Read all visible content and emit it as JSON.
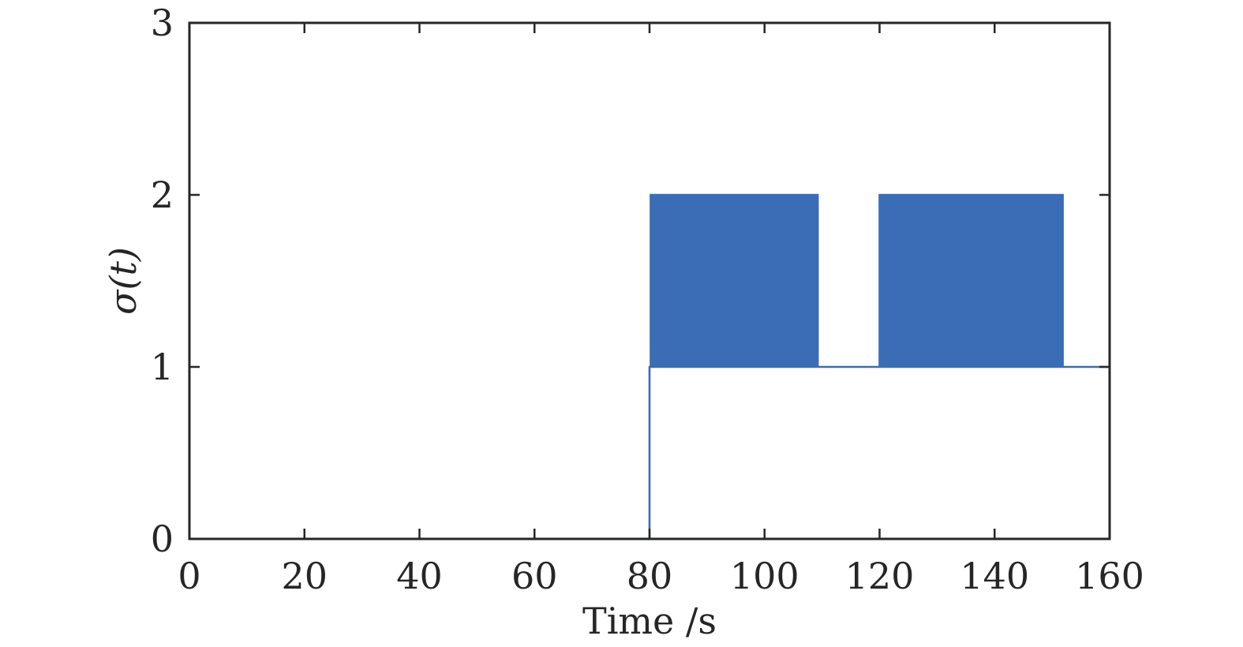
{
  "chart_data": {
    "type": "line",
    "title": "",
    "xlabel": "Time /s",
    "ylabel": "σ(t)",
    "xlim": [
      0,
      160
    ],
    "ylim": [
      0,
      3
    ],
    "xticks": [
      0,
      20,
      40,
      60,
      80,
      100,
      120,
      140,
      160
    ],
    "yticks": [
      0,
      1,
      2,
      3
    ],
    "grid": false,
    "legend": "none",
    "colors": {
      "series": "#3a6db5",
      "axes": "#262626"
    },
    "series": [
      {
        "step": true,
        "segments": [
          {
            "x_start": 0,
            "x_end": 80,
            "value": 0
          },
          {
            "x_start": 80,
            "x_end": 80.2,
            "value": 1
          },
          {
            "x_start": 80.2,
            "x_end": 109.5,
            "value": "alternating 1/2",
            "period": 0.7
          },
          {
            "x_start": 109.5,
            "x_end": 120,
            "value": 1
          },
          {
            "x_start": 120,
            "x_end": 152,
            "value": "alternating 1/2",
            "period": 0.7
          },
          {
            "x_start": 152,
            "x_end": 160,
            "value": 1
          }
        ]
      }
    ]
  }
}
